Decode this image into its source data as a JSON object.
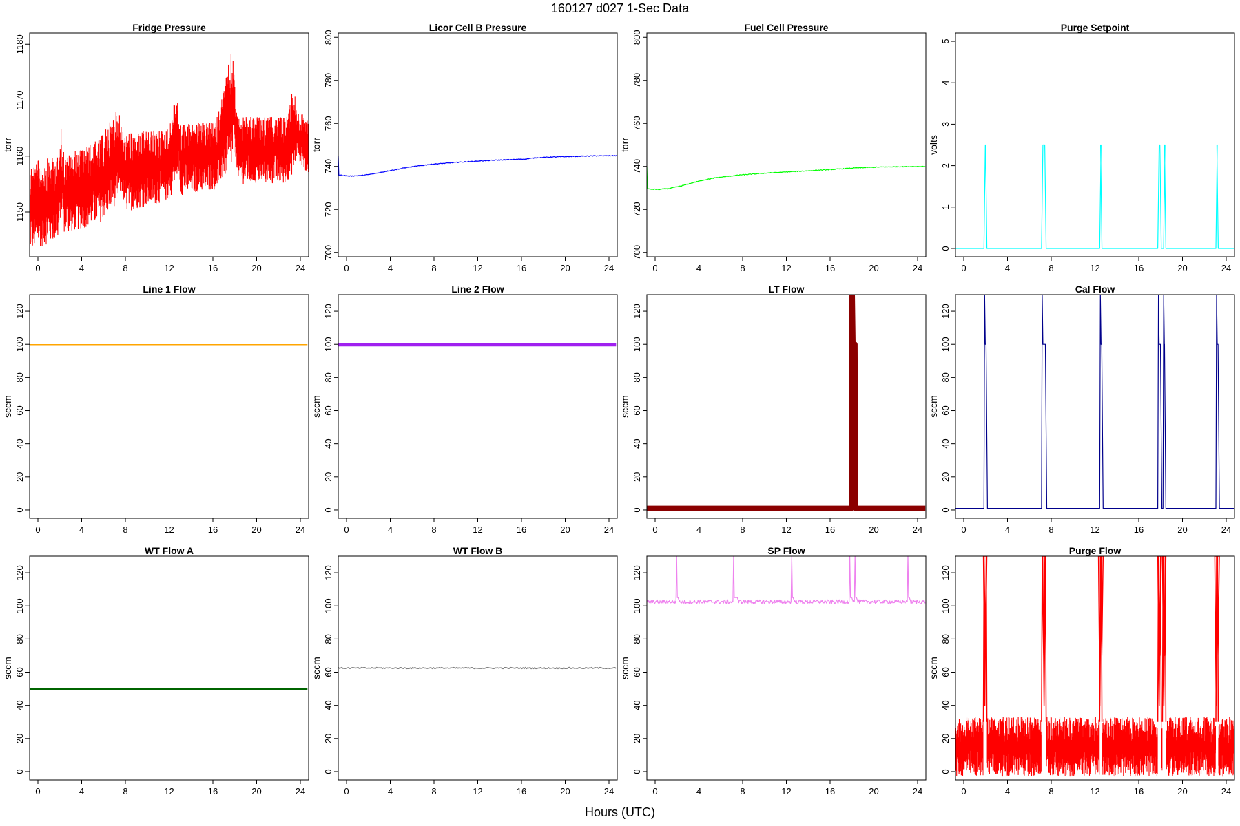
{
  "figure": {
    "title": "160127   d027   1-Sec Data",
    "xlabel": "Hours (UTC)"
  },
  "chart_data": [
    {
      "type": "line",
      "title": "Fridge Pressure",
      "ylabel": "torr",
      "color": "#ff0000",
      "xlim": [
        0,
        24
      ],
      "ylim": [
        1142,
        1182
      ],
      "xticks": [
        "0",
        "4",
        "8",
        "12",
        "16",
        "20",
        "24"
      ],
      "yticks": [
        "1150",
        "1160",
        "1170",
        "1180"
      ],
      "style": "noisy-band",
      "x": [
        0,
        2.5,
        2.7,
        3,
        6,
        7.7,
        7.9,
        8.2,
        12,
        12.6,
        12.8,
        13,
        16,
        17.5,
        17.7,
        18,
        22,
        22.7,
        23,
        24
      ],
      "upper": [
        1159,
        1160,
        1165,
        1160,
        1163,
        1169,
        1165,
        1164,
        1165,
        1172,
        1168,
        1166,
        1166,
        1180,
        1170,
        1167,
        1167,
        1173,
        1168,
        1167
      ],
      "lower": [
        1143,
        1145,
        1150,
        1146,
        1148,
        1152,
        1154,
        1150,
        1152,
        1155,
        1158,
        1153,
        1154,
        1158,
        1160,
        1155,
        1155,
        1157,
        1160,
        1156
      ]
    },
    {
      "type": "line",
      "title": "Licor Cell B Pressure",
      "ylabel": "torr",
      "color": "#0000ff",
      "xlim": [
        0,
        24
      ],
      "ylim": [
        698,
        802
      ],
      "xticks": [
        "0",
        "4",
        "8",
        "12",
        "16",
        "20",
        "24"
      ],
      "yticks": [
        "700",
        "720",
        "740",
        "760",
        "780",
        "800"
      ],
      "style": "line",
      "x": [
        0,
        0.05,
        0.1,
        1,
        2,
        3,
        4,
        5,
        6,
        8,
        10,
        12,
        14,
        16,
        17,
        18,
        20,
        22,
        24
      ],
      "y": [
        745,
        736,
        736,
        735.5,
        735.8,
        736.5,
        737.6,
        738.6,
        739.6,
        741,
        741.8,
        742.5,
        743,
        743.4,
        744,
        744.3,
        744.6,
        744.9,
        745
      ]
    },
    {
      "type": "line",
      "title": "Fuel Cell Pressure",
      "ylabel": "torr",
      "color": "#00ff00",
      "xlim": [
        0,
        24
      ],
      "ylim": [
        698,
        802
      ],
      "xticks": [
        "0",
        "4",
        "8",
        "12",
        "16",
        "20",
        "24"
      ],
      "yticks": [
        "700",
        "720",
        "740",
        "760",
        "780",
        "800"
      ],
      "style": "line",
      "x": [
        0,
        0.05,
        0.1,
        1,
        2,
        3,
        4,
        5,
        6,
        8,
        10,
        12,
        14,
        16,
        17,
        18,
        20,
        22,
        24
      ],
      "y": [
        740,
        730,
        729.5,
        729.3,
        729.8,
        731,
        732.5,
        733.8,
        734.8,
        736,
        736.8,
        737.4,
        738,
        738.6,
        739,
        739.3,
        739.7,
        739.9,
        740
      ]
    },
    {
      "type": "line",
      "title": "Purge Setpoint",
      "ylabel": "volts",
      "color": "#00ffff",
      "xlim": [
        0,
        24
      ],
      "ylim": [
        -0.2,
        5.2
      ],
      "xticks": [
        "0",
        "4",
        "8",
        "12",
        "16",
        "20",
        "24"
      ],
      "yticks": [
        "0",
        "1",
        "2",
        "3",
        "4",
        "5"
      ],
      "style": "pulses",
      "baseline": 0,
      "peak": 2.5,
      "pulses": [
        [
          2.45,
          2.7
        ],
        [
          7.4,
          7.8
        ],
        [
          12.4,
          12.6
        ],
        [
          17.4,
          17.7
        ],
        [
          17.9,
          18.1
        ],
        [
          22.4,
          22.6
        ]
      ]
    },
    {
      "type": "line",
      "title": "Line 1 Flow",
      "ylabel": "sccm",
      "color": "#ffa500",
      "xlim": [
        0,
        24
      ],
      "ylim": [
        -5,
        130
      ],
      "xticks": [
        "0",
        "4",
        "8",
        "12",
        "16",
        "20",
        "24"
      ],
      "yticks": [
        "0",
        "20",
        "40",
        "60",
        "80",
        "100",
        "120"
      ],
      "style": "flat",
      "value": 99.8,
      "thickness": 1.5
    },
    {
      "type": "line",
      "title": "Line 2 Flow",
      "ylabel": "sccm",
      "color": "#a020f0",
      "xlim": [
        0,
        24
      ],
      "ylim": [
        -5,
        130
      ],
      "xticks": [
        "0",
        "4",
        "8",
        "12",
        "16",
        "20",
        "24"
      ],
      "yticks": [
        "0",
        "20",
        "40",
        "60",
        "80",
        "100",
        "120"
      ],
      "style": "flat",
      "value": 99.8,
      "thickness": 5
    },
    {
      "type": "line",
      "title": "LT Flow",
      "ylabel": "sccm",
      "color": "#8b0000",
      "xlim": [
        0,
        24
      ],
      "ylim": [
        -5,
        130
      ],
      "xticks": [
        "0",
        "4",
        "8",
        "12",
        "16",
        "20",
        "24"
      ],
      "yticks": [
        "0",
        "20",
        "40",
        "60",
        "80",
        "100",
        "120"
      ],
      "style": "pulses",
      "thickness": 8,
      "baseline": 1,
      "peak": 100,
      "spike": 130,
      "pulses": [
        [
          17.6,
          17.95
        ]
      ]
    },
    {
      "type": "line",
      "title": "Cal Flow",
      "ylabel": "sccm",
      "color": "#00008b",
      "xlim": [
        0,
        24
      ],
      "ylim": [
        -5,
        130
      ],
      "xticks": [
        "0",
        "4",
        "8",
        "12",
        "16",
        "20",
        "24"
      ],
      "yticks": [
        "0",
        "20",
        "40",
        "60",
        "80",
        "100",
        "120"
      ],
      "style": "pulses",
      "baseline": 1,
      "peak": 100,
      "spike": 130,
      "pulses": [
        [
          2.45,
          2.75
        ],
        [
          7.4,
          7.85
        ],
        [
          12.4,
          12.7
        ],
        [
          17.4,
          17.75
        ],
        [
          17.85,
          18.1
        ],
        [
          22.4,
          22.7
        ]
      ]
    },
    {
      "type": "line",
      "title": "WT Flow A",
      "ylabel": "sccm",
      "color": "#006400",
      "xlim": [
        0,
        24
      ],
      "ylim": [
        -5,
        130
      ],
      "xticks": [
        "0",
        "4",
        "8",
        "12",
        "16",
        "20",
        "24"
      ],
      "yticks": [
        "0",
        "20",
        "40",
        "60",
        "80",
        "100",
        "120"
      ],
      "style": "flat",
      "value": 50,
      "thickness": 3
    },
    {
      "type": "line",
      "title": "WT Flow B",
      "ylabel": "sccm",
      "color": "#808080",
      "xlim": [
        0,
        24
      ],
      "ylim": [
        -5,
        130
      ],
      "xticks": [
        "0",
        "4",
        "8",
        "12",
        "16",
        "20",
        "24"
      ],
      "yticks": [
        "0",
        "20",
        "40",
        "60",
        "80",
        "100",
        "120"
      ],
      "style": "flat",
      "value": 62.5,
      "thickness": 1.5,
      "noise": 0.8
    },
    {
      "type": "line",
      "title": "SP Flow",
      "ylabel": "sccm",
      "color": "#ee82ee",
      "xlim": [
        0,
        24
      ],
      "ylim": [
        -5,
        130
      ],
      "xticks": [
        "0",
        "4",
        "8",
        "12",
        "16",
        "20",
        "24"
      ],
      "yticks": [
        "0",
        "20",
        "40",
        "60",
        "80",
        "100",
        "120"
      ],
      "style": "pulses",
      "noise": 1.2,
      "baseline": 102.5,
      "peak": 105,
      "spike": 130,
      "pulses": [
        [
          2.5,
          2.8
        ],
        [
          7.4,
          7.9
        ],
        [
          12.4,
          12.7
        ],
        [
          17.4,
          17.75
        ],
        [
          17.85,
          18.15
        ],
        [
          22.4,
          22.7
        ]
      ]
    },
    {
      "type": "line",
      "title": "Purge Flow",
      "ylabel": "sccm",
      "color": "#ff0000",
      "xlim": [
        0,
        24
      ],
      "ylim": [
        -5,
        130
      ],
      "xticks": [
        "0",
        "4",
        "8",
        "12",
        "16",
        "20",
        "24"
      ],
      "yticks": [
        "0",
        "20",
        "40",
        "60",
        "80",
        "100",
        "120"
      ],
      "style": "noisy-band-pulses",
      "x": [
        0,
        24
      ],
      "upper": [
        33,
        33
      ],
      "lower": [
        -3,
        -3
      ],
      "baseline": 30,
      "spike": 130,
      "pulses": [
        [
          2.4,
          2.7
        ],
        [
          7.4,
          7.8
        ],
        [
          12.4,
          12.6
        ],
        [
          17.4,
          17.7
        ],
        [
          17.8,
          18.1
        ],
        [
          22.4,
          22.6
        ]
      ]
    }
  ]
}
